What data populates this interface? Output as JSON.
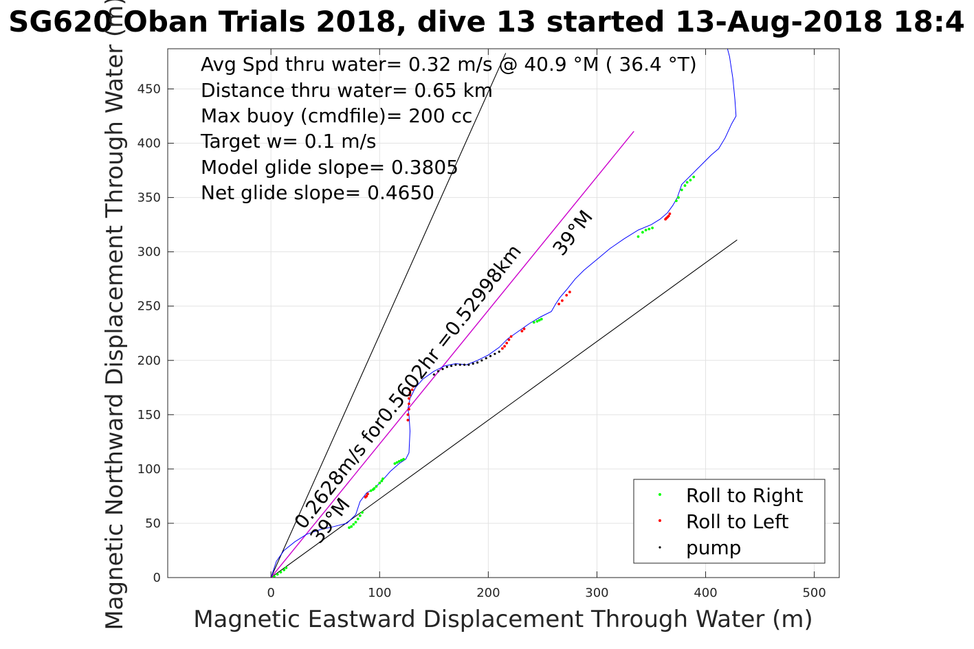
{
  "chart_data": {
    "type": "line",
    "title": "SG620 Oban Trials 2018, dive 13 started 13-Aug-2018 18:4",
    "xlabel": "Magnetic Eastward Displacement Through Water (m)",
    "ylabel": "Magnetic Northward Displacement Through Water (m)",
    "xlim": [
      -95,
      523
    ],
    "ylim": [
      0,
      487
    ],
    "xticks": [
      0,
      100,
      200,
      300,
      400,
      500
    ],
    "yticks": [
      0,
      50,
      100,
      150,
      200,
      250,
      300,
      350,
      400,
      450
    ],
    "grid": true,
    "info_lines": [
      "Avg Spd thru water=  0.32 m/s @  40.9 °M ( 36.4 °T)",
      "Distance thru water=  0.65 km",
      "Max buoy (cmdfile)= 200 cc",
      "Target w= 0.1 m/s",
      "Model glide slope= 0.3805",
      "Net glide slope= 0.4650"
    ],
    "annotations": [
      {
        "text": "0.2628m/s for0.5602hr =0.52998km",
        "angle": -52
      },
      {
        "text": "39°M",
        "angle": -52,
        "at": [
          45,
          28
        ]
      },
      {
        "text": "39°M",
        "angle": -52,
        "at": [
          262,
          296
        ]
      }
    ],
    "legend": {
      "position": "bottom-right",
      "entries": [
        {
          "label": "Roll to Right",
          "color": "#00ff00"
        },
        {
          "label": "Roll to Left",
          "color": "#ff0000"
        },
        {
          "label": "pump",
          "color": "#000000"
        }
      ]
    },
    "colors": {
      "track": "#0000ff",
      "net_line": "#cc00cc",
      "guide": "#000000",
      "roll_right": "#00ff00",
      "roll_left": "#ff0000",
      "pump": "#000000"
    },
    "series": [
      {
        "role": "track",
        "x": [
          0,
          5,
          12,
          22,
          33,
          45,
          58,
          70,
          78,
          82,
          88,
          95,
          103,
          110,
          118,
          124,
          127,
          128,
          127,
          126,
          128,
          133,
          140,
          150,
          160,
          170,
          180,
          190,
          200,
          210,
          218,
          228,
          238,
          248,
          258,
          262,
          266,
          272,
          280,
          288,
          300,
          312,
          325,
          338,
          350,
          358,
          365,
          370,
          374,
          378,
          383,
          388,
          393,
          398,
          405,
          412,
          418,
          424,
          428,
          427,
          425,
          422,
          418
        ],
        "y": [
          0,
          15,
          25,
          33,
          40,
          44,
          47,
          50,
          58,
          70,
          78,
          82,
          90,
          98,
          105,
          109,
          115,
          135,
          150,
          155,
          165,
          175,
          183,
          190,
          195,
          197,
          196,
          200,
          205,
          212,
          220,
          227,
          234,
          240,
          245,
          252,
          258,
          265,
          275,
          283,
          293,
          303,
          312,
          320,
          325,
          330,
          336,
          343,
          350,
          362,
          367,
          372,
          377,
          382,
          389,
          395,
          405,
          418,
          425,
          440,
          460,
          480,
          495
        ]
      },
      {
        "role": "net_line",
        "x": [
          0,
          334
        ],
        "y": [
          0,
          411
        ]
      },
      {
        "role": "guide_steep",
        "x": [
          0,
          216
        ],
        "y": [
          0,
          483
        ]
      },
      {
        "role": "guide_shallow",
        "x": [
          0,
          429
        ],
        "y": [
          0,
          311
        ]
      },
      {
        "role": "roll_right",
        "x": [
          3,
          6,
          9,
          12,
          14,
          72,
          74,
          76,
          78,
          80,
          82,
          84,
          89,
          92,
          94,
          95,
          97,
          100,
          102,
          103,
          114,
          116,
          118,
          120,
          122,
          242,
          245,
          247,
          249,
          338,
          342,
          345,
          348,
          351,
          373,
          375,
          378,
          381,
          383,
          386,
          389
        ],
        "y": [
          1,
          3,
          5,
          7,
          9,
          46,
          47,
          49,
          51,
          54,
          57,
          60,
          77,
          80,
          81,
          82,
          84,
          87,
          89,
          91,
          105,
          106,
          107,
          108,
          109,
          235,
          236,
          237,
          238,
          314,
          318,
          320,
          321,
          322,
          347,
          350,
          357,
          361,
          364,
          366,
          369
        ]
      },
      {
        "role": "roll_left",
        "x": [
          87,
          88,
          89,
          126,
          126,
          127,
          127,
          127,
          128,
          128,
          130,
          131,
          213,
          215,
          217,
          219,
          221,
          231,
          233,
          265,
          268,
          272,
          275,
          363,
          364,
          365,
          366,
          367
        ],
        "y": [
          74,
          75,
          77,
          145,
          150,
          155,
          160,
          165,
          168,
          170,
          173,
          176,
          211,
          213,
          216,
          219,
          222,
          227,
          229,
          252,
          255,
          260,
          263,
          330,
          331,
          332,
          333,
          335
        ]
      },
      {
        "role": "pump",
        "x": [
          150,
          154,
          158,
          162,
          166,
          170,
          174,
          178,
          182,
          186,
          190,
          194,
          198,
          202,
          206,
          210
        ],
        "y": [
          187,
          190,
          192,
          194,
          195,
          196,
          196,
          196,
          196,
          197,
          198,
          200,
          202,
          204,
          206,
          208
        ]
      }
    ]
  }
}
